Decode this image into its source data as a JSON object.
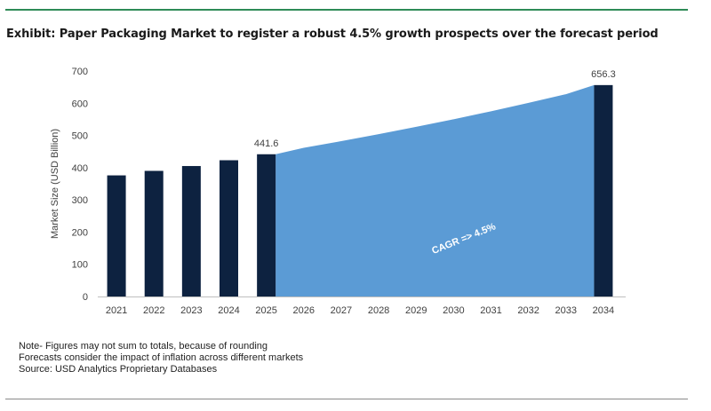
{
  "title": "Exhibit: Paper Packaging Market to register a robust 4.5% growth prospects over the forecast period",
  "chart_data": {
    "type": "bar",
    "categories": [
      "2021",
      "2022",
      "2023",
      "2024",
      "2025",
      "2026",
      "2027",
      "2028",
      "2029",
      "2030",
      "2031",
      "2032",
      "2033",
      "2034"
    ],
    "values": [
      376,
      390,
      405,
      423,
      441.6,
      null,
      null,
      null,
      null,
      null,
      null,
      null,
      null,
      656.3
    ],
    "data_labels": {
      "2025": "441.6",
      "2034": "656.3"
    },
    "area": {
      "type": "area",
      "x": [
        "2025",
        "2026",
        "2027",
        "2028",
        "2029",
        "2030",
        "2031",
        "2032",
        "2033",
        "2034"
      ],
      "values": [
        441.6,
        461.5,
        482.2,
        503.9,
        526.6,
        550.3,
        575.1,
        601.0,
        628.0,
        656.3
      ]
    },
    "annotation": "CAGR => 4.5%",
    "ylabel": "Market Size (USD Billion)",
    "xlabel": "",
    "ylim": [
      0,
      700
    ],
    "yticks": [
      0,
      100,
      200,
      300,
      400,
      500,
      600,
      700
    ],
    "grid": false,
    "colors": {
      "bar": "#0d2240",
      "area": "#5b9bd5",
      "axis": "#bfbfbf",
      "tick_text": "#404040",
      "annotation": "#ffffff"
    }
  },
  "notes": [
    "Note- Figures may not sum to totals, because of rounding",
    "Forecasts consider the impact of inflation across different markets",
    "Source: USD Analytics Proprietary Databases"
  ]
}
